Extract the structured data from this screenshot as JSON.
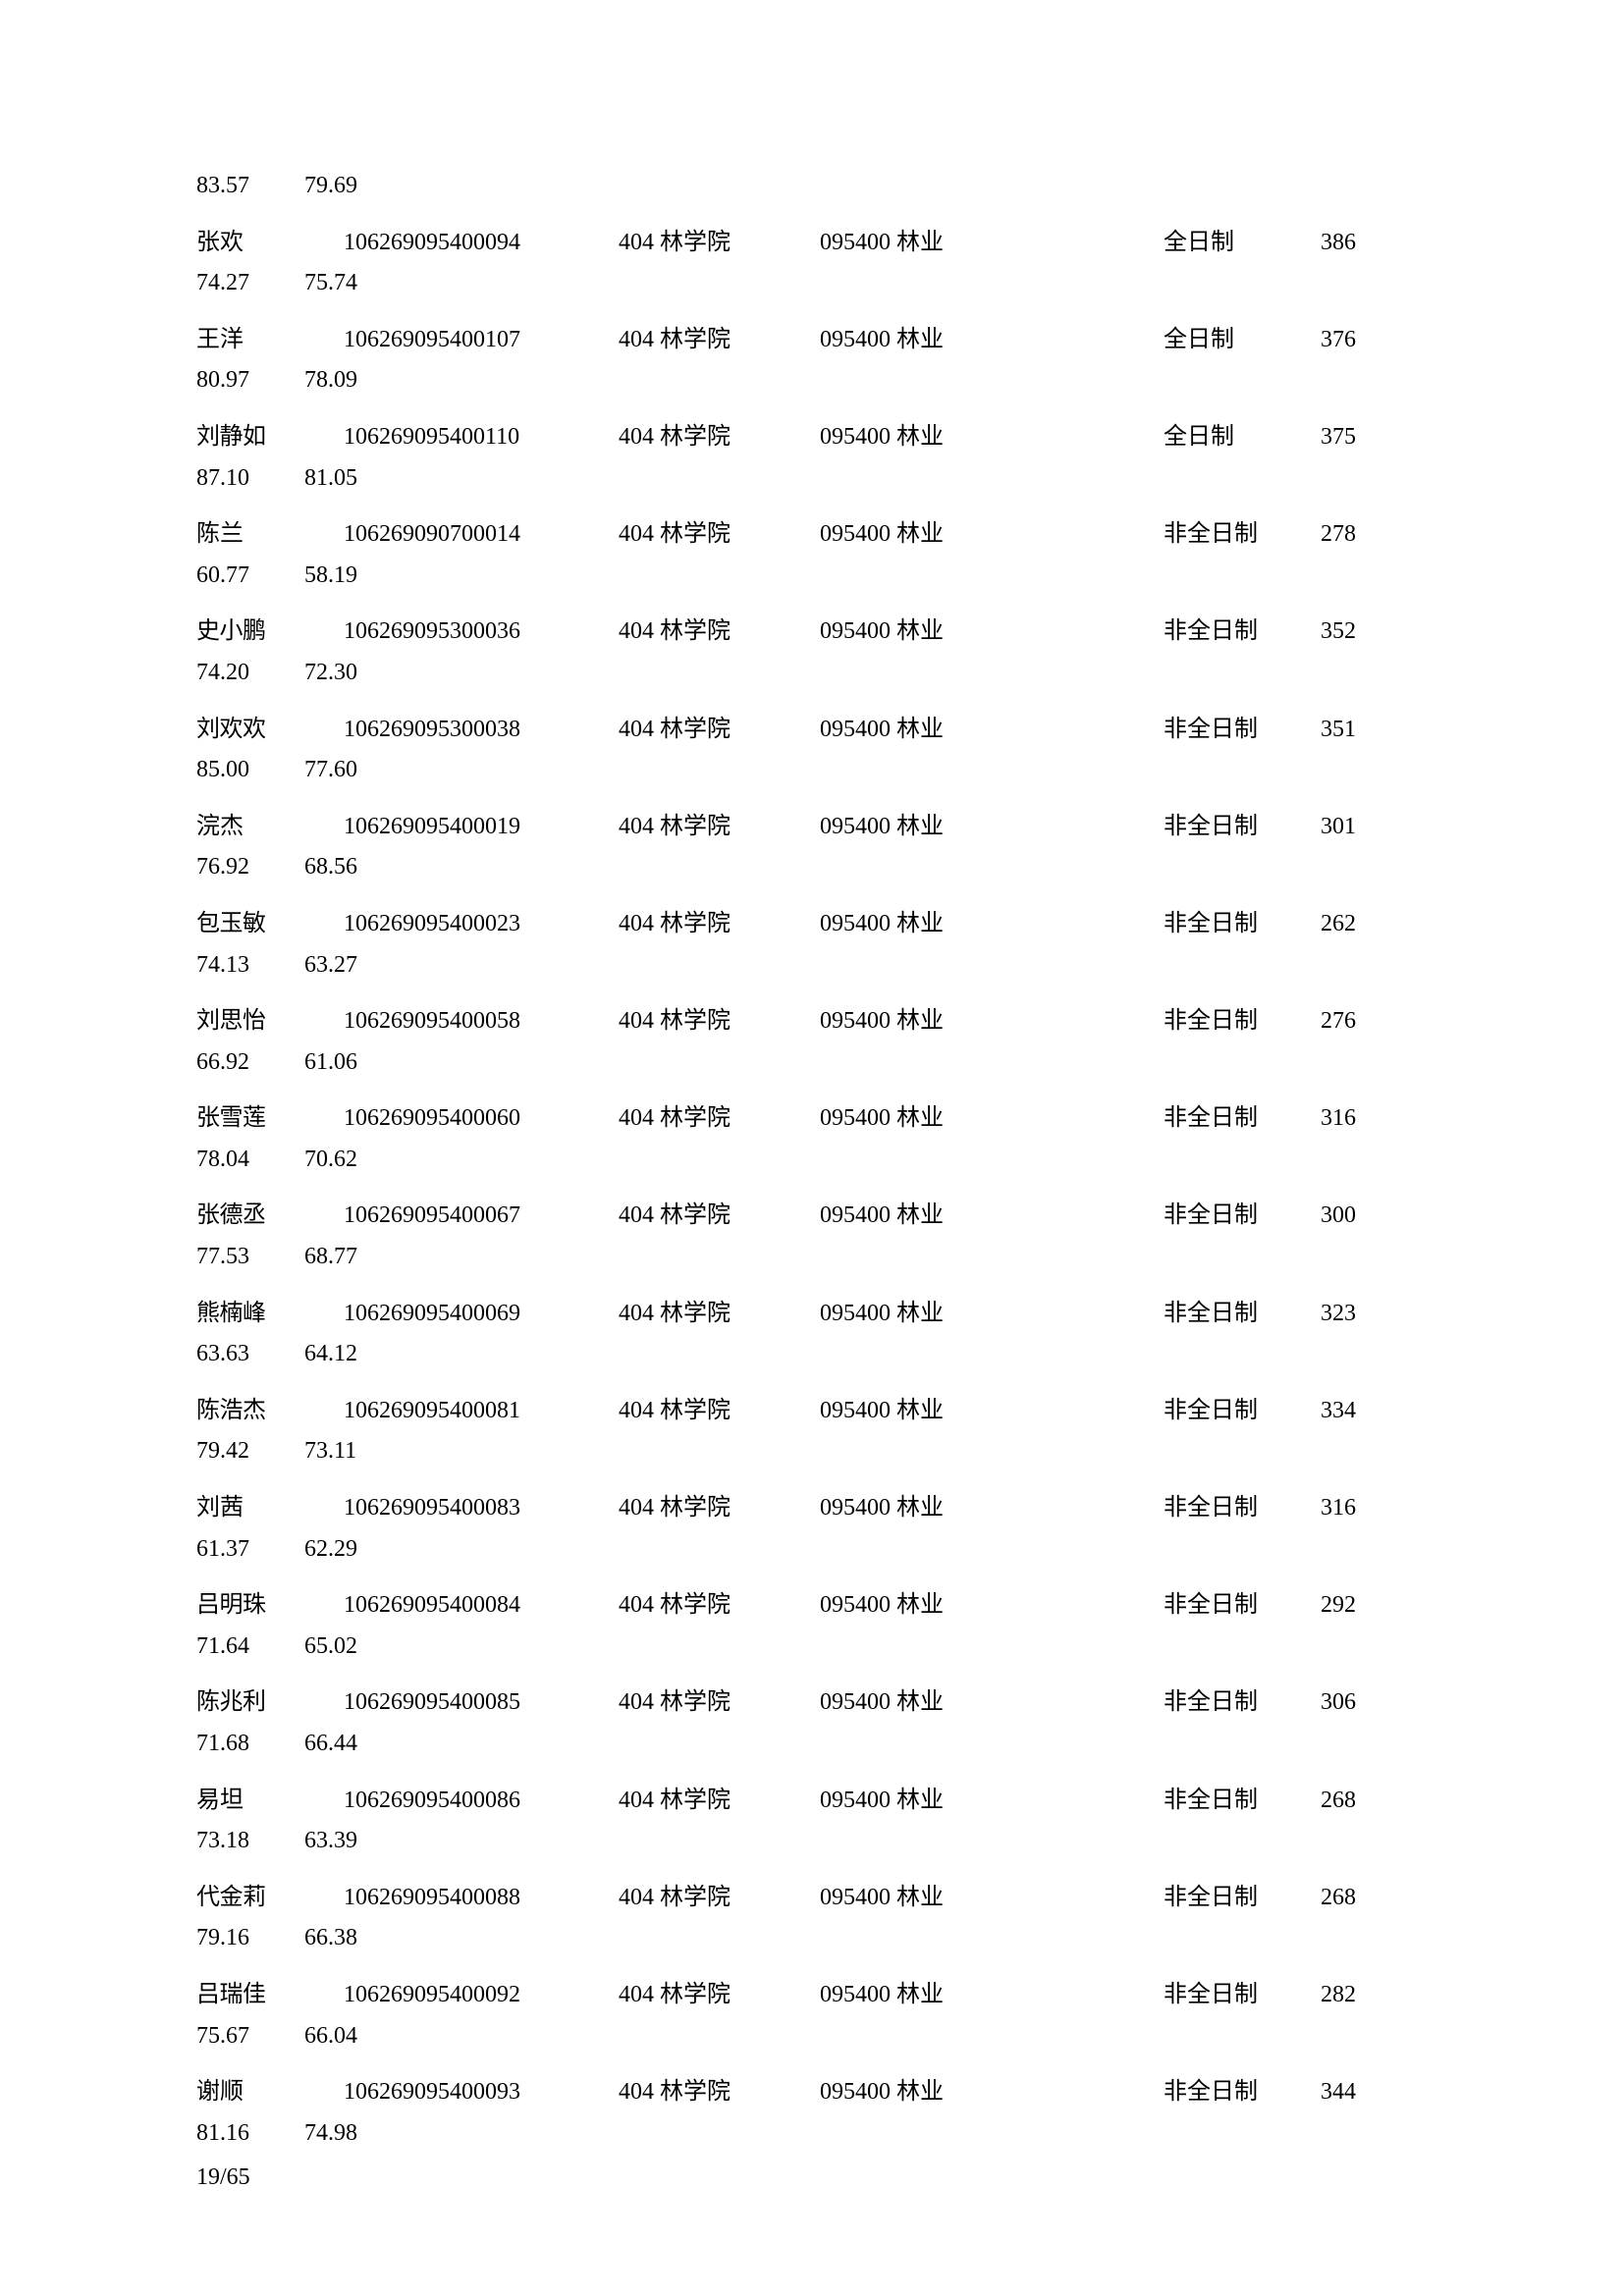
{
  "first_row": {
    "n1": "83.57",
    "n2": "79.69"
  },
  "rows": [
    {
      "name": "张欢",
      "id": "106269095400094",
      "dept": "404 林学院",
      "major": "095400 林业",
      "mode": "全日制",
      "score": "386",
      "n1": "74.27",
      "n2": "75.74"
    },
    {
      "name": "王洋",
      "id": "106269095400107",
      "dept": "404 林学院",
      "major": "095400 林业",
      "mode": "全日制",
      "score": "376",
      "n1": "80.97",
      "n2": "78.09"
    },
    {
      "name": "刘静如",
      "id": "106269095400110",
      "dept": "404 林学院",
      "major": "095400 林业",
      "mode": "全日制",
      "score": "375",
      "n1": "87.10",
      "n2": "81.05"
    },
    {
      "name": "陈兰",
      "id": "106269090700014",
      "dept": "404 林学院",
      "major": "095400 林业",
      "mode": "非全日制",
      "score": "278",
      "n1": "60.77",
      "n2": "58.19"
    },
    {
      "name": "史小鹏",
      "id": "106269095300036",
      "dept": "404 林学院",
      "major": "095400 林业",
      "mode": "非全日制",
      "score": "352",
      "n1": "74.20",
      "n2": "72.30"
    },
    {
      "name": "刘欢欢",
      "id": "106269095300038",
      "dept": "404 林学院",
      "major": "095400 林业",
      "mode": "非全日制",
      "score": "351",
      "n1": "85.00",
      "n2": "77.60"
    },
    {
      "name": "浣杰",
      "id": "106269095400019",
      "dept": "404 林学院",
      "major": "095400 林业",
      "mode": "非全日制",
      "score": "301",
      "n1": "76.92",
      "n2": "68.56"
    },
    {
      "name": "包玉敏",
      "id": "106269095400023",
      "dept": "404 林学院",
      "major": "095400 林业",
      "mode": "非全日制",
      "score": "262",
      "n1": "74.13",
      "n2": "63.27"
    },
    {
      "name": "刘思怡",
      "id": "106269095400058",
      "dept": "404 林学院",
      "major": "095400 林业",
      "mode": "非全日制",
      "score": "276",
      "n1": "66.92",
      "n2": "61.06"
    },
    {
      "name": "张雪莲",
      "id": "106269095400060",
      "dept": "404 林学院",
      "major": "095400 林业",
      "mode": "非全日制",
      "score": "316",
      "n1": "78.04",
      "n2": "70.62"
    },
    {
      "name": "张德丞",
      "id": "106269095400067",
      "dept": "404 林学院",
      "major": "095400 林业",
      "mode": "非全日制",
      "score": "300",
      "n1": "77.53",
      "n2": "68.77"
    },
    {
      "name": "熊楠峰",
      "id": "106269095400069",
      "dept": "404 林学院",
      "major": "095400 林业",
      "mode": "非全日制",
      "score": "323",
      "n1": "63.63",
      "n2": "64.12"
    },
    {
      "name": "陈浩杰",
      "id": "106269095400081",
      "dept": "404 林学院",
      "major": "095400 林业",
      "mode": "非全日制",
      "score": "334",
      "n1": "79.42",
      "n2": "73.11"
    },
    {
      "name": "刘茜",
      "id": "106269095400083",
      "dept": "404 林学院",
      "major": "095400 林业",
      "mode": "非全日制",
      "score": "316",
      "n1": "61.37",
      "n2": "62.29"
    },
    {
      "name": "吕明珠",
      "id": "106269095400084",
      "dept": "404 林学院",
      "major": "095400 林业",
      "mode": "非全日制",
      "score": "292",
      "n1": "71.64",
      "n2": "65.02"
    },
    {
      "name": "陈兆利",
      "id": "106269095400085",
      "dept": "404 林学院",
      "major": "095400 林业",
      "mode": "非全日制",
      "score": "306",
      "n1": "71.68",
      "n2": "66.44"
    },
    {
      "name": "易坦",
      "id": "106269095400086",
      "dept": "404 林学院",
      "major": "095400 林业",
      "mode": "非全日制",
      "score": "268",
      "n1": "73.18",
      "n2": "63.39"
    },
    {
      "name": "代金莉",
      "id": "106269095400088",
      "dept": "404 林学院",
      "major": "095400 林业",
      "mode": "非全日制",
      "score": "268",
      "n1": "79.16",
      "n2": "66.38"
    },
    {
      "name": "吕瑞佳",
      "id": "106269095400092",
      "dept": "404 林学院",
      "major": "095400 林业",
      "mode": "非全日制",
      "score": "282",
      "n1": "75.67",
      "n2": "66.04"
    },
    {
      "name": "谢顺",
      "id": "106269095400093",
      "dept": "404 林学院",
      "major": "095400 林业",
      "mode": "非全日制",
      "score": "344",
      "n1": "81.16",
      "n2": "74.98"
    }
  ],
  "footer": "19/65"
}
